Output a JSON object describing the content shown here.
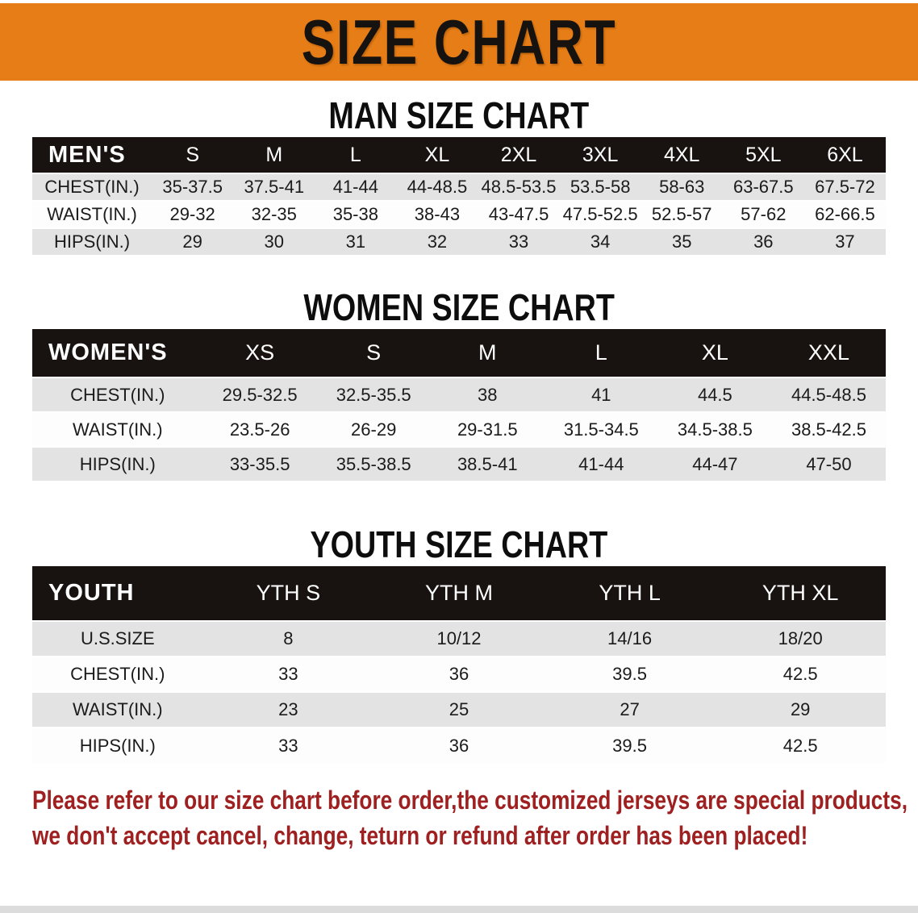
{
  "banner": {
    "title": "SIZE CHART"
  },
  "colors": {
    "banner_bg": "#e67d16",
    "banner_text": "#15120f",
    "header_band": "#181310",
    "row_gray": "#e3e3e3",
    "warning_red": "#9e2020"
  },
  "sections": [
    {
      "title": "MAN SIZE CHART",
      "table": {
        "header_label": "MEN'S",
        "columns": [
          "S",
          "M",
          "L",
          "XL",
          "2XL",
          "3XL",
          "4XL",
          "5XL",
          "6XL"
        ],
        "rows": [
          {
            "label": "CHEST(IN.)",
            "values": [
              "35-37.5",
              "37.5-41",
              "41-44",
              "44-48.5",
              "48.5-53.5",
              "53.5-58",
              "58-63",
              "63-67.5",
              "67.5-72"
            ]
          },
          {
            "label": "WAIST(IN.)",
            "values": [
              "29-32",
              "32-35",
              "35-38",
              "38-43",
              "43-47.5",
              "47.5-52.5",
              "52.5-57",
              "57-62",
              "62-66.5"
            ]
          },
          {
            "label": "HIPS(IN.)",
            "values": [
              "29",
              "30",
              "31",
              "32",
              "33",
              "34",
              "35",
              "36",
              "37"
            ]
          }
        ]
      }
    },
    {
      "title": "WOMEN SIZE CHART",
      "table": {
        "header_label": "WOMEN'S",
        "columns": [
          "XS",
          "S",
          "M",
          "L",
          "XL",
          "XXL"
        ],
        "rows": [
          {
            "label": "CHEST(IN.)",
            "values": [
              "29.5-32.5",
              "32.5-35.5",
              "38",
              "41",
              "44.5",
              "44.5-48.5"
            ]
          },
          {
            "label": "WAIST(IN.)",
            "values": [
              "23.5-26",
              "26-29",
              "29-31.5",
              "31.5-34.5",
              "34.5-38.5",
              "38.5-42.5"
            ]
          },
          {
            "label": "HIPS(IN.)",
            "values": [
              "33-35.5",
              "35.5-38.5",
              "38.5-41",
              "41-44",
              "44-47",
              "47-50"
            ]
          }
        ]
      }
    },
    {
      "title": "YOUTH SIZE CHART",
      "table": {
        "header_label": "YOUTH",
        "columns": [
          "YTH S",
          "YTH M",
          "YTH L",
          "YTH XL"
        ],
        "rows": [
          {
            "label": "U.S.SIZE",
            "values": [
              "8",
              "10/12",
              "14/16",
              "18/20"
            ]
          },
          {
            "label": "CHEST(IN.)",
            "values": [
              "33",
              "36",
              "39.5",
              "42.5"
            ]
          },
          {
            "label": "WAIST(IN.)",
            "values": [
              "23",
              "25",
              "27",
              "29"
            ]
          },
          {
            "label": "HIPS(IN.)",
            "values": [
              "33",
              "36",
              "39.5",
              "42.5"
            ]
          }
        ]
      }
    }
  ],
  "disclaimer": {
    "line1": "Please refer to our size chart before order,the customized jerseys are special products,",
    "line2": "we don't accept cancel, change, teturn or refund after order has been placed!"
  }
}
